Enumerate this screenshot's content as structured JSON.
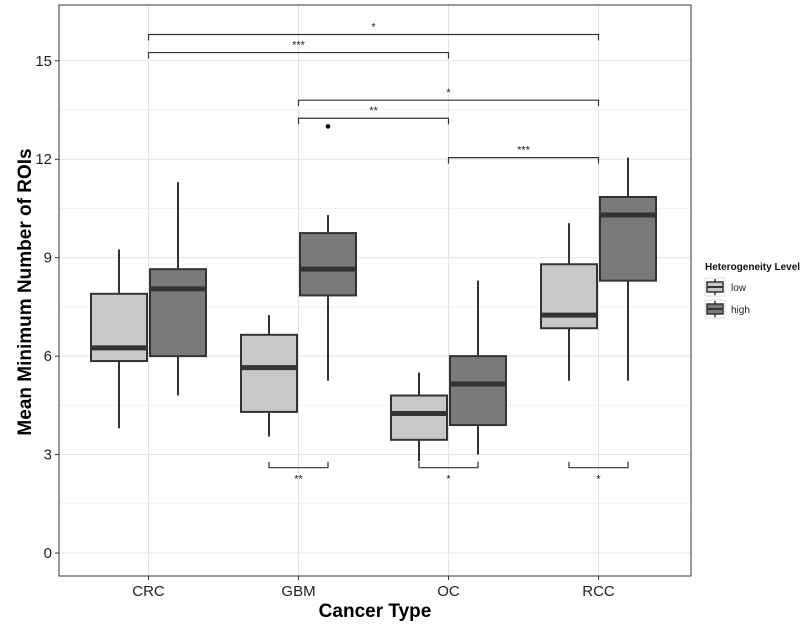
{
  "chart_data": {
    "type": "box",
    "xlabel": "Cancer Type",
    "ylabel": "Mean Minimum Number of ROIs",
    "categories": [
      "CRC",
      "GBM",
      "OC",
      "RCC"
    ],
    "ylim": [
      -0.7,
      16.7
    ],
    "yticks": [
      0,
      3,
      6,
      9,
      12,
      15
    ],
    "grid": true,
    "legend": {
      "title": "Heterogeneity Level",
      "position": "right",
      "entries": [
        {
          "label": "low",
          "color": "#c8c8c8"
        },
        {
          "label": "high",
          "color": "#7a7a7a"
        }
      ]
    },
    "series": [
      {
        "name": "low",
        "color": "#c8c8c8",
        "boxes": [
          {
            "category": "CRC",
            "whisker_low": 3.8,
            "q1": 5.85,
            "median": 6.25,
            "q3": 7.9,
            "whisker_high": 9.25,
            "outliers": []
          },
          {
            "category": "GBM",
            "whisker_low": 3.55,
            "q1": 4.3,
            "median": 5.65,
            "q3": 6.65,
            "whisker_high": 7.25,
            "outliers": []
          },
          {
            "category": "OC",
            "whisker_low": 2.8,
            "q1": 3.45,
            "median": 4.25,
            "q3": 4.8,
            "whisker_high": 5.5,
            "outliers": []
          },
          {
            "category": "RCC",
            "whisker_low": 5.25,
            "q1": 6.85,
            "median": 7.25,
            "q3": 8.8,
            "whisker_high": 10.05,
            "outliers": []
          }
        ]
      },
      {
        "name": "high",
        "color": "#7a7a7a",
        "boxes": [
          {
            "category": "CRC",
            "whisker_low": 4.8,
            "q1": 6.0,
            "median": 8.05,
            "q3": 8.65,
            "whisker_high": 11.3,
            "outliers": []
          },
          {
            "category": "GBM",
            "whisker_low": 5.25,
            "q1": 7.85,
            "median": 8.65,
            "q3": 9.75,
            "whisker_high": 10.3,
            "outliers": [
              13.0
            ]
          },
          {
            "category": "OC",
            "whisker_low": 3.0,
            "q1": 3.9,
            "median": 5.15,
            "q3": 6.0,
            "whisker_high": 8.3,
            "outliers": []
          },
          {
            "category": "RCC",
            "whisker_low": 5.25,
            "q1": 8.3,
            "median": 10.3,
            "q3": 10.85,
            "whisker_high": 12.05,
            "outliers": []
          }
        ]
      }
    ],
    "annotations": [
      {
        "type": "between",
        "from": "CRC",
        "to": "RCC",
        "y": 15.8,
        "label": "*"
      },
      {
        "type": "between",
        "from": "CRC",
        "to": "OC",
        "y": 15.25,
        "label": "***"
      },
      {
        "type": "between",
        "from": "GBM",
        "to": "RCC",
        "y": 13.8,
        "label": "*"
      },
      {
        "type": "between",
        "from": "GBM",
        "to": "OC",
        "y": 13.25,
        "label": "**"
      },
      {
        "type": "between",
        "from": "OC",
        "to": "RCC",
        "y": 12.05,
        "label": "***"
      },
      {
        "type": "within",
        "category": "GBM",
        "y": 2.6,
        "label": "**"
      },
      {
        "type": "within",
        "category": "OC",
        "y": 2.6,
        "label": "*"
      },
      {
        "type": "within",
        "category": "RCC",
        "y": 2.6,
        "label": "*"
      }
    ]
  }
}
